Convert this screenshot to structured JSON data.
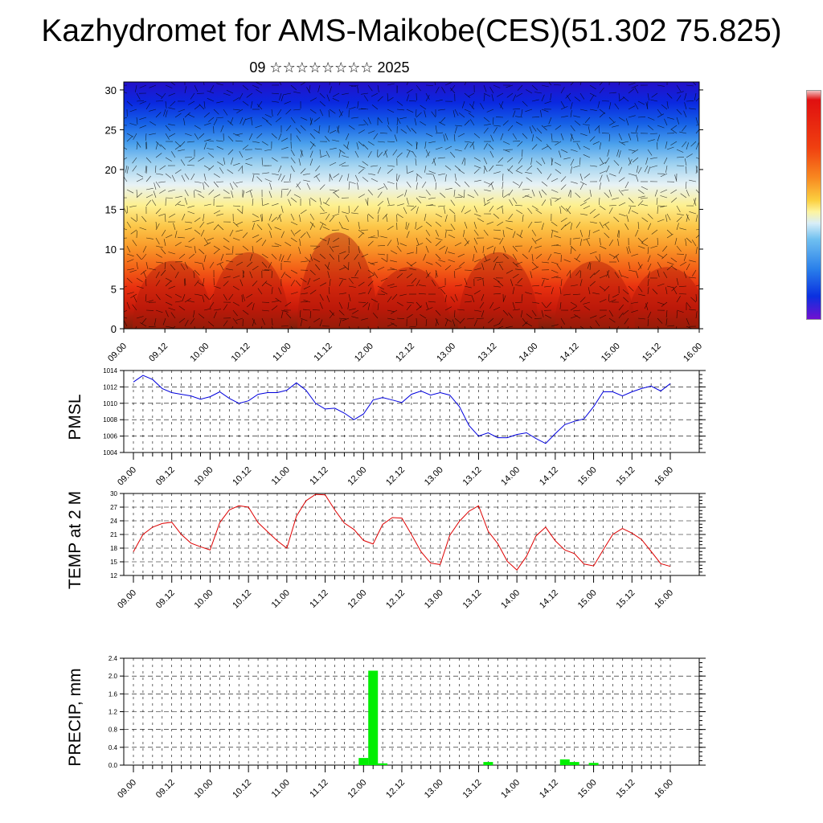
{
  "page": {
    "title": "Kazhydromet for AMS-Maikobe(CES)(51.302 75.825)",
    "subtitle": "09 ☆☆☆☆☆☆☆☆ 2025"
  },
  "chart_data": [
    {
      "id": "cross-section",
      "type": "heatmap",
      "title": "",
      "xlabel": "",
      "ylabel": "",
      "x_tick_labels": [
        "09.00",
        "09.12",
        "10.00",
        "10.12",
        "11.00",
        "11.12",
        "12.00",
        "12.12",
        "13.00",
        "13.12",
        "14.00",
        "14.12",
        "15.00",
        "15.12",
        "16.00"
      ],
      "y_ticks": [
        0,
        5,
        10,
        15,
        20,
        25,
        30
      ],
      "ylim": [
        0,
        31
      ],
      "colormap": [
        "#7f1f0a",
        "#c81a0a",
        "#e8300f",
        "#f46418",
        "#f99a2a",
        "#fcc84a",
        "#fdf090",
        "#e8f2f5",
        "#9fd2f0",
        "#4aa0ec",
        "#1560e6",
        "#0a28e0",
        "#2410c8"
      ],
      "has_wind_barbs": true
    },
    {
      "id": "pmsl",
      "type": "line",
      "title": "",
      "xlabel": "",
      "ylabel": "PMSL",
      "ylim": [
        1004,
        1014
      ],
      "y_ticks": [
        1004,
        1006,
        1008,
        1010,
        1012,
        1014
      ],
      "x_tick_labels": [
        "09.00",
        "09.12",
        "10.00",
        "10.12",
        "11.00",
        "11.12",
        "12.00",
        "12.12",
        "13.00",
        "13.12",
        "14.00",
        "14.12",
        "15.00",
        "15.12",
        "16.00"
      ],
      "x_step_hours": 3,
      "color": "#0000dd",
      "values": [
        1012.6,
        1013.4,
        1012.9,
        1011.8,
        1011.3,
        1011.1,
        1010.9,
        1010.5,
        1010.8,
        1011.4,
        1010.6,
        1010.0,
        1010.3,
        1011.1,
        1011.3,
        1011.3,
        1011.6,
        1012.5,
        1011.6,
        1010.0,
        1009.3,
        1009.4,
        1008.8,
        1008.0,
        1008.7,
        1010.4,
        1010.7,
        1010.4,
        1010.1,
        1011.1,
        1011.5,
        1011.0,
        1011.3,
        1011.0,
        1009.6,
        1007.3,
        1006.0,
        1006.4,
        1005.8,
        1005.8,
        1006.2,
        1006.4,
        1005.7,
        1005.1,
        1006.3,
        1007.4,
        1007.8,
        1008.1,
        1009.6,
        1011.4,
        1011.4,
        1010.9,
        1011.4,
        1011.8,
        1012.1,
        1011.5,
        1012.4
      ]
    },
    {
      "id": "temp2m",
      "type": "line",
      "title": "",
      "xlabel": "",
      "ylabel": "TEMP at 2 M",
      "ylim": [
        12,
        30
      ],
      "y_ticks": [
        12,
        15,
        18,
        21,
        24,
        27,
        30
      ],
      "x_tick_labels": [
        "09.00",
        "09.12",
        "10.00",
        "10.12",
        "11.00",
        "11.12",
        "12.00",
        "12.12",
        "13.00",
        "13.12",
        "14.00",
        "14.12",
        "15.00",
        "15.12",
        "16.00"
      ],
      "x_step_hours": 3,
      "color": "#dd0000",
      "values": [
        17.2,
        21.0,
        22.6,
        23.4,
        23.7,
        21.0,
        19.1,
        18.3,
        17.6,
        23.6,
        26.4,
        27.3,
        27.0,
        23.6,
        21.6,
        19.6,
        18.0,
        25.0,
        28.4,
        29.8,
        29.7,
        26.4,
        23.5,
        22.1,
        19.7,
        18.9,
        23.2,
        24.7,
        24.6,
        21.0,
        17.2,
        14.7,
        14.4,
        20.8,
        23.9,
        26.1,
        27.3,
        21.7,
        19.0,
        15.1,
        13.2,
        16.2,
        20.7,
        22.6,
        19.6,
        17.6,
        16.8,
        14.5,
        14.1,
        17.6,
        21.0,
        22.3,
        21.3,
        19.9,
        17.3,
        14.6,
        14.0
      ]
    },
    {
      "id": "precip",
      "type": "bar",
      "title": "",
      "xlabel": "",
      "ylabel": "PRECIP, mm",
      "ylim": [
        0,
        2.4
      ],
      "y_ticks": [
        0.0,
        0.4,
        0.8,
        1.2,
        1.6,
        2.0,
        2.4
      ],
      "x_tick_labels": [
        "09.00",
        "09.12",
        "10.00",
        "10.12",
        "11.00",
        "11.12",
        "12.00",
        "12.12",
        "13.00",
        "13.12",
        "14.00",
        "14.12",
        "15.00",
        "15.12",
        "16.00"
      ],
      "x_step_hours": 3,
      "color": "#00ee00",
      "bars": [
        {
          "hour": 72,
          "value": 0.16
        },
        {
          "hour": 75,
          "value": 2.12
        },
        {
          "hour": 78,
          "value": 0.04
        },
        {
          "hour": 111,
          "value": 0.07
        },
        {
          "hour": 135,
          "value": 0.13
        },
        {
          "hour": 138,
          "value": 0.07
        },
        {
          "hour": 144,
          "value": 0.05
        }
      ]
    }
  ]
}
